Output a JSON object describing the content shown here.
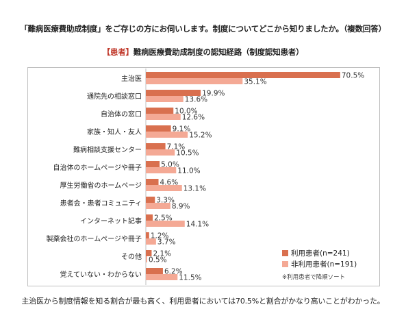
{
  "title_question": "「難病医療費助成制度」をご存じの方にお伺いします。制度についてどこから知りましたか。（複数回答）",
  "subtitle": {
    "tag": "【患者】",
    "text": "難病医療費助成制度の認知経路（制度認知患者）"
  },
  "footnote": "主治医から制度情報を知る割合が最も高く、利用患者においては70.5%と割合がかなり高いことがわかった。",
  "legend": {
    "series1": "利用患者(n=241)",
    "series2": "非利用患者(n=191)",
    "note": "※利用患者で降順ソート"
  },
  "colors": {
    "series1": "#d9704f",
    "series2": "#f4a995"
  },
  "chart_data": {
    "type": "bar",
    "orientation": "horizontal",
    "categories": [
      "主治医",
      "通院先の相談窓口",
      "自治体の窓口",
      "家族・知人・友人",
      "難病相談支援センター",
      "自治体のホームページや冊子",
      "厚生労働省のホームページ",
      "患者会・患者コミュニティ",
      "インターネット記事",
      "製薬会社のホームページや冊子",
      "その他",
      "覚えていない・わからない"
    ],
    "series": [
      {
        "name": "利用患者(n=241)",
        "values": [
          70.5,
          19.9,
          10.0,
          9.1,
          7.1,
          5.0,
          4.6,
          3.3,
          2.5,
          1.2,
          2.1,
          6.2
        ],
        "labels": [
          "70.5%",
          "19.9%",
          "10.0%",
          "9.1%",
          "7.1%",
          "5.0%",
          "4.6%",
          "3.3%",
          "2.5%",
          "1.2%",
          "2.1%",
          "6.2%"
        ]
      },
      {
        "name": "非利用患者(n=191)",
        "values": [
          35.1,
          13.6,
          12.6,
          15.2,
          10.5,
          11.0,
          13.1,
          8.9,
          14.1,
          3.7,
          0.5,
          11.5
        ],
        "labels": [
          "35.1%",
          "13.6%",
          "12.6%",
          "15.2%",
          "10.5%",
          "11.0%",
          "13.1%",
          "8.9%",
          "14.1%",
          "3.7%",
          "0.5%",
          "11.5%"
        ]
      }
    ],
    "xlim": [
      0,
      75
    ],
    "grid": false,
    "legend_position": "bottom-right"
  }
}
